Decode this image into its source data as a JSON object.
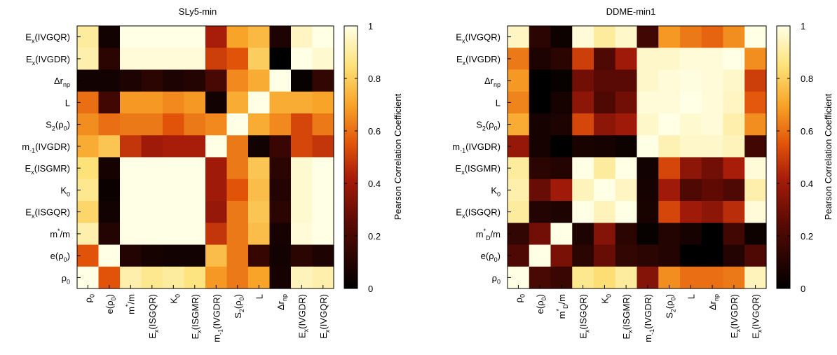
{
  "chart_data": [
    {
      "type": "heatmap",
      "title": "SLy5-min",
      "y_labels": [
        {
          "base": "E",
          "sub": "x",
          "rest": "(IVGQR)"
        },
        {
          "base": "E",
          "sub": "x",
          "rest": "(IVGDR)"
        },
        {
          "base": "Δr",
          "sub": "np",
          "rest": ""
        },
        {
          "base": "L",
          "sub": "",
          "rest": ""
        },
        {
          "base": "S",
          "sub": "2",
          "rest": "(ρ",
          "sub2": "0",
          "rest2": ")"
        },
        {
          "base": "m",
          "sub": "-1",
          "rest": "(IVGDR)"
        },
        {
          "base": "E",
          "sub": "x",
          "rest": "(ISGMR)"
        },
        {
          "base": "K",
          "sub": "0",
          "rest": ""
        },
        {
          "base": "E",
          "sub": "x",
          "rest": "(ISGQR)"
        },
        {
          "base": "m",
          "sup": "*",
          "rest": "/m"
        },
        {
          "base": "e(ρ",
          "sub": "0",
          "rest": ")"
        },
        {
          "base": "ρ",
          "sub": "0",
          "rest": ""
        }
      ],
      "x_labels": [
        {
          "base": "ρ",
          "sub": "0",
          "rest": ""
        },
        {
          "base": "e(ρ",
          "sub": "0",
          "rest": ")"
        },
        {
          "base": "m",
          "sup": "*",
          "rest": "/m"
        },
        {
          "base": "E",
          "sub": "x",
          "rest": "(ISGQR)"
        },
        {
          "base": "K",
          "sub": "0",
          "rest": ""
        },
        {
          "base": "E",
          "sub": "x",
          "rest": "(ISGMR)"
        },
        {
          "base": "m",
          "sub": "-1",
          "rest": "(IVGDR)"
        },
        {
          "base": "S",
          "sub": "2",
          "rest": "(ρ",
          "sub2": "0",
          "rest2": ")"
        },
        {
          "base": "L",
          "sub": "",
          "rest": ""
        },
        {
          "base": "Δr",
          "sub": "np",
          "rest": ""
        },
        {
          "base": "E",
          "sub": "x",
          "rest": "(IVGDR)"
        },
        {
          "base": "E",
          "sub": "x",
          "rest": "(IVGQR)"
        }
      ],
      "values": [
        [
          0.9,
          0.05,
          1.0,
          1.0,
          1.0,
          1.0,
          0.42,
          0.7,
          0.75,
          0.08,
          0.95,
          1.0
        ],
        [
          0.92,
          0.12,
          0.98,
          0.98,
          0.98,
          0.98,
          0.5,
          0.55,
          0.8,
          0.0,
          1.0,
          0.97
        ],
        [
          0.05,
          0.05,
          0.08,
          0.12,
          0.08,
          0.1,
          0.2,
          0.65,
          0.72,
          1.0,
          0.02,
          0.14
        ],
        [
          0.6,
          0.18,
          0.68,
          0.68,
          0.65,
          0.68,
          0.05,
          0.72,
          1.0,
          0.72,
          0.72,
          0.7
        ],
        [
          0.66,
          0.6,
          0.62,
          0.62,
          0.55,
          0.62,
          0.65,
          1.0,
          0.72,
          0.65,
          0.52,
          0.62
        ],
        [
          0.72,
          0.78,
          0.48,
          0.4,
          0.42,
          0.42,
          1.0,
          0.62,
          0.05,
          0.16,
          0.52,
          0.48
        ],
        [
          0.85,
          0.06,
          1.0,
          1.0,
          1.0,
          1.0,
          0.4,
          0.62,
          0.78,
          0.12,
          0.97,
          1.0
        ],
        [
          0.88,
          0.03,
          1.0,
          1.0,
          1.0,
          1.0,
          0.4,
          0.55,
          0.76,
          0.1,
          0.97,
          1.0
        ],
        [
          0.82,
          0.05,
          1.0,
          1.0,
          1.0,
          1.0,
          0.38,
          0.62,
          0.78,
          0.12,
          0.97,
          1.0
        ],
        [
          0.92,
          0.1,
          1.0,
          1.0,
          1.0,
          1.0,
          0.48,
          0.62,
          0.76,
          0.06,
          0.98,
          1.0
        ],
        [
          0.55,
          1.0,
          0.1,
          0.06,
          0.05,
          0.05,
          0.76,
          0.62,
          0.15,
          0.05,
          0.12,
          0.08
        ],
        [
          1.0,
          0.55,
          0.92,
          0.88,
          0.9,
          0.86,
          0.68,
          0.62,
          0.7,
          0.06,
          0.94,
          0.92
        ]
      ],
      "zlim": [
        0,
        1
      ]
    },
    {
      "type": "heatmap",
      "title": "DDME-min1",
      "y_labels": [
        {
          "base": "E",
          "sub": "x",
          "rest": "(IVGQR)"
        },
        {
          "base": "E",
          "sub": "x",
          "rest": "(IVGDR)"
        },
        {
          "base": "Δr",
          "sub": "np",
          "rest": ""
        },
        {
          "base": "L",
          "sub": "",
          "rest": ""
        },
        {
          "base": "S",
          "sub": "2",
          "rest": "(ρ",
          "sub2": "0",
          "rest2": ")"
        },
        {
          "base": "m",
          "sub": "-1",
          "rest": "(IVGDR)"
        },
        {
          "base": "E",
          "sub": "x",
          "rest": "(ISGMR)"
        },
        {
          "base": "K",
          "sub": "0",
          "rest": ""
        },
        {
          "base": "E",
          "sub": "x",
          "rest": "(ISGQR)"
        },
        {
          "base": "m",
          "sup": "*",
          "sub": "D",
          "rest": "/m"
        },
        {
          "base": "e(ρ",
          "sub": "0",
          "rest": ")"
        },
        {
          "base": "ρ",
          "sub": "0",
          "rest": ""
        }
      ],
      "x_labels": [
        {
          "base": "ρ",
          "sub": "0",
          "rest": ""
        },
        {
          "base": "e(ρ",
          "sub": "0",
          "rest": ")"
        },
        {
          "base": "m",
          "sup": "*",
          "sub": "D",
          "rest": "/m"
        },
        {
          "base": "E",
          "sub": "x",
          "rest": "(ISGQR)"
        },
        {
          "base": "K",
          "sub": "0",
          "rest": ""
        },
        {
          "base": "E",
          "sub": "x",
          "rest": "(ISGMR)"
        },
        {
          "base": "m",
          "sub": "-1",
          "rest": "(IVGDR)"
        },
        {
          "base": "S",
          "sub": "2",
          "rest": "(ρ",
          "sub2": "0",
          "rest2": ")"
        },
        {
          "base": "L",
          "sub": "",
          "rest": ""
        },
        {
          "base": "Δr",
          "sub": "np",
          "rest": ""
        },
        {
          "base": "E",
          "sub": "x",
          "rest": "(IVGDR)"
        },
        {
          "base": "E",
          "sub": "x",
          "rest": "(IVGQR)"
        }
      ],
      "values": [
        [
          0.95,
          0.12,
          0.04,
          0.98,
          0.9,
          0.96,
          0.18,
          0.68,
          0.62,
          0.58,
          0.66,
          1.0
        ],
        [
          0.62,
          0.08,
          0.12,
          0.5,
          0.22,
          0.4,
          0.96,
          0.96,
          0.98,
          0.98,
          1.0,
          0.66
        ],
        [
          0.68,
          0.0,
          0.02,
          0.3,
          0.25,
          0.25,
          0.96,
          0.98,
          0.99,
          0.98,
          0.96,
          0.5
        ],
        [
          0.64,
          0.0,
          0.06,
          0.36,
          0.22,
          0.3,
          0.98,
          0.98,
          1.0,
          0.98,
          0.95,
          0.56
        ],
        [
          0.72,
          0.06,
          0.08,
          0.52,
          0.36,
          0.4,
          0.96,
          1.0,
          0.97,
          0.98,
          0.92,
          0.66
        ],
        [
          0.38,
          0.06,
          0.0,
          0.07,
          0.06,
          0.04,
          1.0,
          0.93,
          0.96,
          0.96,
          0.94,
          0.18
        ],
        [
          0.9,
          0.12,
          0.1,
          1.0,
          0.9,
          1.0,
          0.05,
          0.52,
          0.36,
          0.3,
          0.42,
          0.98
        ],
        [
          0.92,
          0.28,
          0.4,
          0.94,
          1.0,
          0.95,
          0.06,
          0.4,
          0.22,
          0.26,
          0.22,
          0.92
        ],
        [
          0.9,
          0.1,
          0.08,
          1.0,
          0.94,
          1.0,
          0.07,
          0.52,
          0.4,
          0.36,
          0.46,
          0.98
        ],
        [
          0.14,
          0.3,
          1.0,
          0.08,
          0.34,
          0.12,
          0.02,
          0.1,
          0.06,
          0.0,
          0.18,
          0.04
        ],
        [
          0.22,
          1.0,
          0.32,
          0.12,
          0.28,
          0.14,
          0.12,
          0.1,
          0.0,
          0.0,
          0.1,
          0.22
        ],
        [
          1.0,
          0.2,
          0.16,
          0.88,
          0.84,
          0.9,
          0.34,
          0.66,
          0.6,
          0.6,
          0.62,
          0.94
        ]
      ],
      "zlim": [
        0,
        1
      ]
    }
  ],
  "colorbar": {
    "label": "Pearson Correlation Coefficient",
    "ticks": [
      "0",
      "0.2",
      "0.4",
      "0.6",
      "0.8",
      "1"
    ]
  }
}
